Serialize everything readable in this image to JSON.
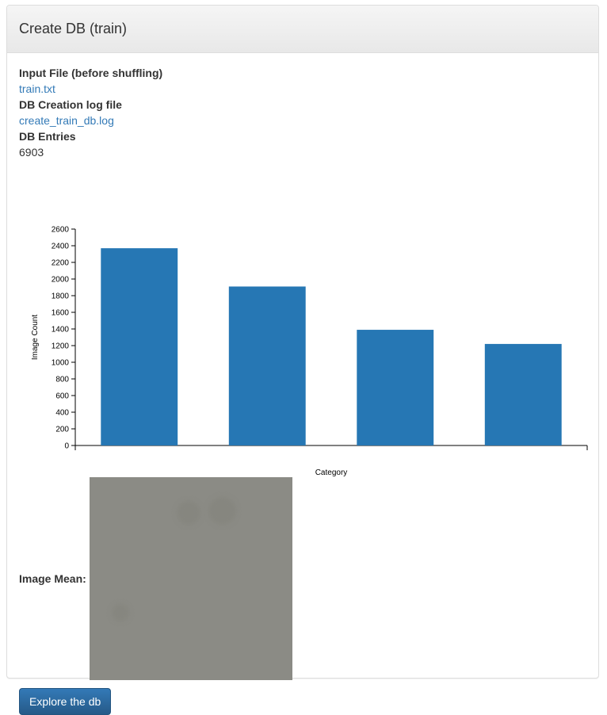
{
  "panel": {
    "title": "Create DB (train)"
  },
  "info": {
    "input_file_label": "Input File (before shuffling)",
    "input_file_link": "train.txt",
    "log_label": "DB Creation log file",
    "log_link": "create_train_db.log",
    "entries_label": "DB Entries",
    "entries_value": "6903"
  },
  "chart_data": {
    "type": "bar",
    "categories": [
      "",
      "",
      "",
      ""
    ],
    "values": [
      2370,
      1910,
      1390,
      1220
    ],
    "title": "",
    "xlabel": "Category",
    "ylabel": "Image Count",
    "ylim": [
      0,
      2600
    ],
    "yticks": [
      0,
      200,
      400,
      600,
      800,
      1000,
      1200,
      1400,
      1600,
      1800,
      2000,
      2200,
      2400,
      2600
    ],
    "bar_color": "#2677b4",
    "grid": false
  },
  "image_mean": {
    "label": "Image Mean:",
    "color": "#8b8b85"
  },
  "actions": {
    "explore_label": "Explore the db"
  }
}
